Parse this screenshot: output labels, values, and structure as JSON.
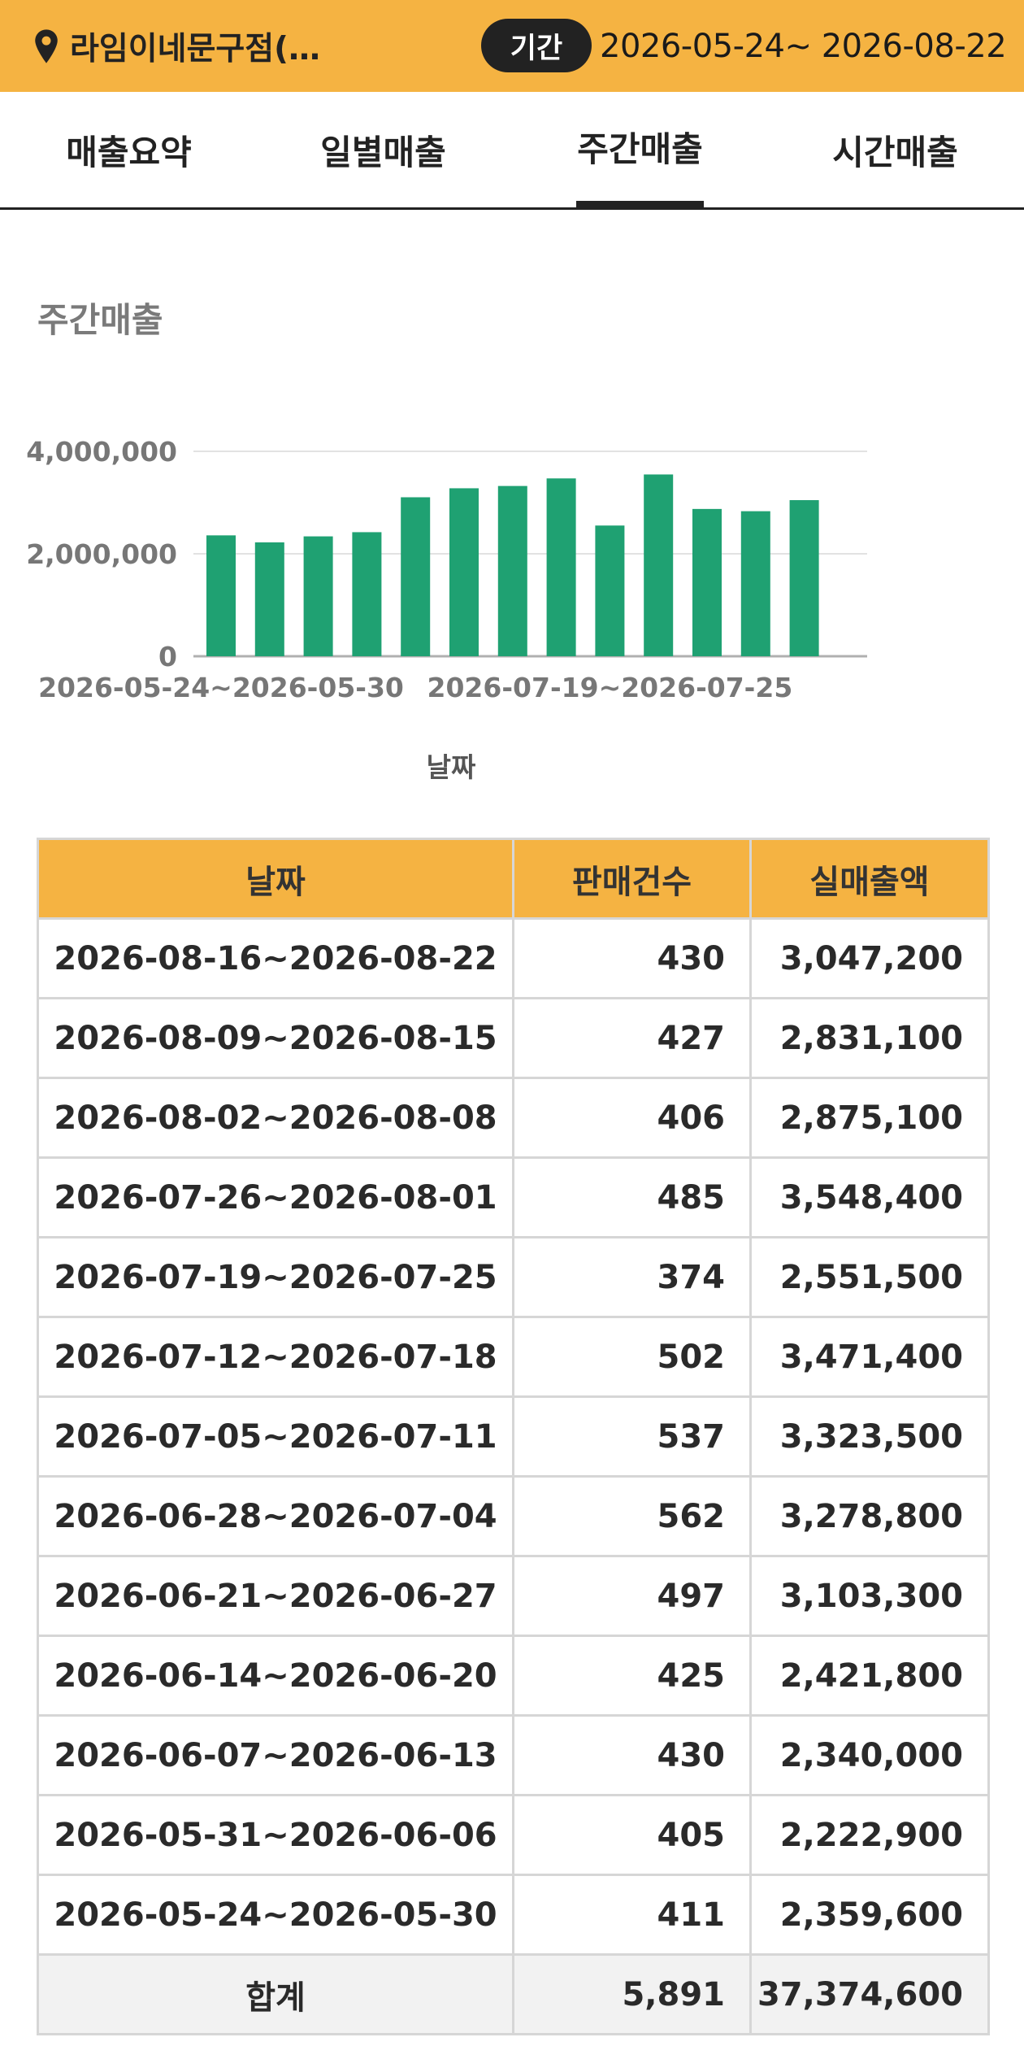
{
  "header": {
    "store_name": "라임이네문구점(…",
    "period_label": "기간",
    "period_range": "2026-05-24~ 2026-08-22",
    "bg_color": "#f5b342"
  },
  "tabs": [
    {
      "label": "매출요약",
      "active": false
    },
    {
      "label": "일별매출",
      "active": false
    },
    {
      "label": "주간매출",
      "active": true
    },
    {
      "label": "시간매출",
      "active": false
    }
  ],
  "section_title": "주간매출",
  "chart_data": {
    "type": "bar",
    "xlabel": "날짜",
    "ylabel": "",
    "ylim": [
      0,
      4000000
    ],
    "yticks": [
      "0",
      "2,000,000",
      "4,000,000"
    ],
    "yticks_values": [
      0,
      2000000,
      4000000
    ],
    "xtick_labels": [
      "2026-05-24~2026-05-30",
      "2026-07-19~2026-07-25"
    ],
    "bar_color": "#1fa172",
    "grid": true,
    "categories": [
      "2026-05-24~2026-05-30",
      "2026-05-31~2026-06-06",
      "2026-06-07~2026-06-13",
      "2026-06-14~2026-06-20",
      "2026-06-21~2026-06-27",
      "2026-06-28~2026-07-04",
      "2026-07-05~2026-07-11",
      "2026-07-12~2026-07-18",
      "2026-07-19~2026-07-25",
      "2026-07-26~2026-08-01",
      "2026-08-02~2026-08-08",
      "2026-08-09~2026-08-15",
      "2026-08-16~2026-08-22"
    ],
    "values": [
      2359600,
      2222900,
      2340000,
      2421800,
      3103300,
      3278800,
      3323500,
      3471400,
      2551500,
      3548400,
      2875100,
      2831100,
      3047200
    ]
  },
  "table": {
    "headers": [
      "날짜",
      "판매건수",
      "실매출액"
    ],
    "rows": [
      {
        "date": "2026-08-16~2026-08-22",
        "count": "430",
        "amount": "3,047,200"
      },
      {
        "date": "2026-08-09~2026-08-15",
        "count": "427",
        "amount": "2,831,100"
      },
      {
        "date": "2026-08-02~2026-08-08",
        "count": "406",
        "amount": "2,875,100"
      },
      {
        "date": "2026-07-26~2026-08-01",
        "count": "485",
        "amount": "3,548,400"
      },
      {
        "date": "2026-07-19~2026-07-25",
        "count": "374",
        "amount": "2,551,500"
      },
      {
        "date": "2026-07-12~2026-07-18",
        "count": "502",
        "amount": "3,471,400"
      },
      {
        "date": "2026-07-05~2026-07-11",
        "count": "537",
        "amount": "3,323,500"
      },
      {
        "date": "2026-06-28~2026-07-04",
        "count": "562",
        "amount": "3,278,800"
      },
      {
        "date": "2026-06-21~2026-06-27",
        "count": "497",
        "amount": "3,103,300"
      },
      {
        "date": "2026-06-14~2026-06-20",
        "count": "425",
        "amount": "2,421,800"
      },
      {
        "date": "2026-06-07~2026-06-13",
        "count": "430",
        "amount": "2,340,000"
      },
      {
        "date": "2026-05-31~2026-06-06",
        "count": "405",
        "amount": "2,222,900"
      },
      {
        "date": "2026-05-24~2026-05-30",
        "count": "411",
        "amount": "2,359,600"
      }
    ],
    "total": {
      "label": "합계",
      "count": "5,891",
      "amount": "37,374,600"
    }
  }
}
